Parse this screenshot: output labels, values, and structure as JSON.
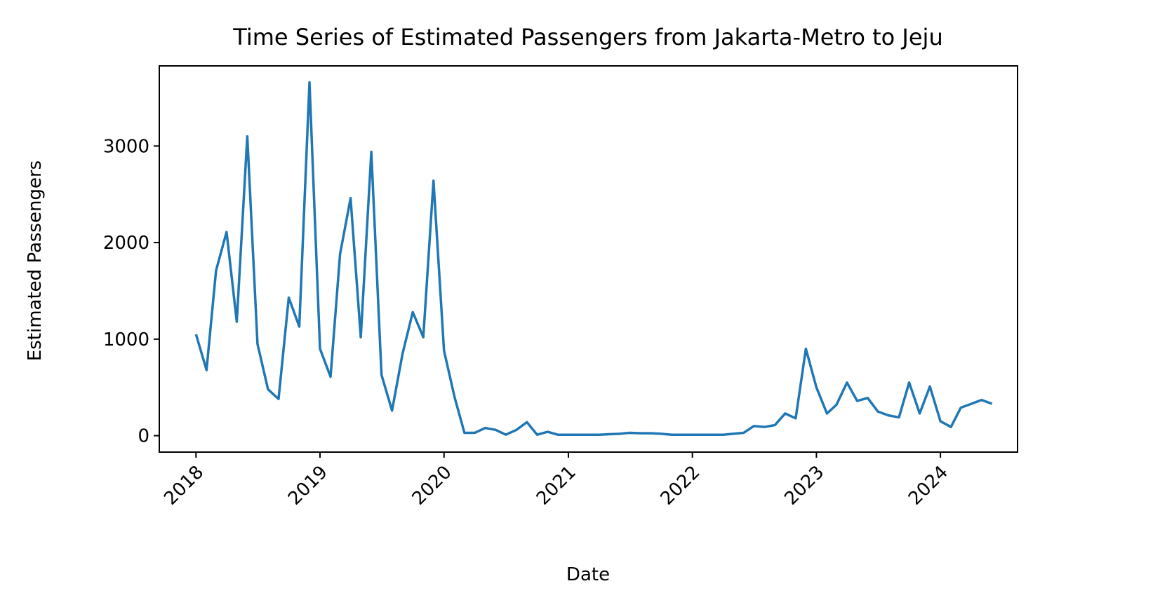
{
  "chart_data": {
    "type": "line",
    "title": "Time Series of Estimated Passengers from Jakarta-Metro to Jeju",
    "xlabel": "Date",
    "ylabel": "Estimated Passengers",
    "x_ticks": [
      "2018",
      "2019",
      "2020",
      "2021",
      "2022",
      "2023",
      "2024"
    ],
    "y_ticks": [
      0,
      1000,
      2000,
      3000
    ],
    "xlim": [
      "2017-09-15",
      "2024-08-15"
    ],
    "ylim": [
      -170,
      3830
    ],
    "grid": false,
    "line_color": "#1f77b4",
    "series": [
      {
        "x": [
          "2018-01",
          "2018-02",
          "2018-03",
          "2018-04",
          "2018-05",
          "2018-06",
          "2018-07",
          "2018-08",
          "2018-09",
          "2018-10",
          "2018-11",
          "2018-12",
          "2019-01",
          "2019-02",
          "2019-03",
          "2019-04",
          "2019-05",
          "2019-06",
          "2019-07",
          "2019-08",
          "2019-09",
          "2019-10",
          "2019-11",
          "2019-12",
          "2020-01",
          "2020-02",
          "2020-03",
          "2020-04",
          "2020-05",
          "2020-06",
          "2020-07",
          "2020-08",
          "2020-09",
          "2020-10",
          "2020-11",
          "2020-12",
          "2021-01",
          "2021-02",
          "2021-03",
          "2021-04",
          "2021-05",
          "2021-06",
          "2021-07",
          "2021-08",
          "2021-09",
          "2021-10",
          "2021-11",
          "2021-12",
          "2022-01",
          "2022-02",
          "2022-03",
          "2022-04",
          "2022-05",
          "2022-06",
          "2022-07",
          "2022-08",
          "2022-09",
          "2022-10",
          "2022-11",
          "2022-12",
          "2023-01",
          "2023-02",
          "2023-03",
          "2023-04",
          "2023-05",
          "2023-06",
          "2023-07",
          "2023-08",
          "2023-09",
          "2023-10",
          "2023-11",
          "2023-12",
          "2024-01",
          "2024-02",
          "2024-03",
          "2024-04",
          "2024-05",
          "2024-06"
        ],
        "values": [
          1050,
          680,
          1710,
          2110,
          1180,
          3100,
          950,
          480,
          380,
          1430,
          1130,
          3660,
          900,
          610,
          1880,
          2460,
          1020,
          2940,
          630,
          260,
          850,
          1280,
          1020,
          2640,
          880,
          400,
          30,
          30,
          80,
          60,
          10,
          60,
          140,
          10,
          40,
          10,
          10,
          10,
          10,
          10,
          15,
          20,
          30,
          25,
          25,
          20,
          10,
          10,
          10,
          10,
          10,
          10,
          20,
          30,
          100,
          90,
          110,
          230,
          180,
          900,
          500,
          230,
          320,
          550,
          360,
          390,
          250,
          210,
          190,
          550,
          230,
          510,
          150,
          90,
          290,
          330,
          370,
          330
        ]
      }
    ]
  }
}
